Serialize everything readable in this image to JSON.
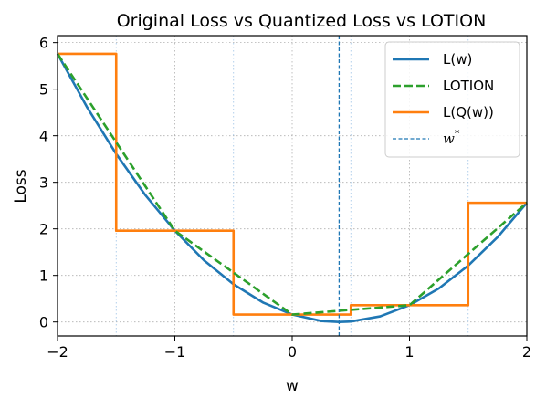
{
  "chart_data": {
    "type": "line",
    "title": "Original Loss vs Quantized Loss vs LOTION",
    "xlabel": "w",
    "ylabel": "Loss",
    "xlim": [
      -2,
      2
    ],
    "ylim": [
      -0.3,
      6.15
    ],
    "xticks": [
      -2,
      -1,
      0,
      1,
      2
    ],
    "xtick_labels": [
      "−2",
      "−1",
      "0",
      "1",
      "2"
    ],
    "yticks": [
      0,
      1,
      2,
      3,
      4,
      5,
      6
    ],
    "ytick_labels": [
      "0",
      "1",
      "2",
      "3",
      "4",
      "5",
      "6"
    ],
    "grid": true,
    "legend_position": "upper right",
    "quantization_boundaries": [
      -1.5,
      -0.5,
      0.5,
      1.5
    ],
    "series": [
      {
        "name": "L(w)",
        "color": "#1f77b4",
        "style": "solid",
        "x": [
          -2.0,
          -1.75,
          -1.5,
          -1.25,
          -1.0,
          -0.75,
          -0.5,
          -0.25,
          0.0,
          0.25,
          0.4,
          0.5,
          0.75,
          1.0,
          1.25,
          1.5,
          1.75,
          2.0
        ],
        "y": [
          5.76,
          4.62,
          3.61,
          2.72,
          1.96,
          1.32,
          0.81,
          0.42,
          0.16,
          0.02,
          0.0,
          0.01,
          0.12,
          0.36,
          0.72,
          1.21,
          1.82,
          2.56
        ]
      },
      {
        "name": "LOTION",
        "color": "#2ca02c",
        "style": "dashed",
        "x": [
          -2.0,
          -1.5,
          -1.0,
          -0.5,
          0.0,
          0.5,
          1.0,
          1.5,
          2.0
        ],
        "y": [
          5.76,
          3.86,
          1.96,
          1.06,
          0.16,
          0.26,
          0.36,
          1.46,
          2.56
        ]
      },
      {
        "name": "L(Q(w))",
        "color": "#ff7f0e",
        "style": "step",
        "x": [
          -2.0,
          -1.5,
          -1.5,
          -0.5,
          -0.5,
          0.5,
          0.5,
          1.5,
          1.5,
          2.0
        ],
        "y": [
          5.76,
          5.76,
          1.96,
          1.96,
          0.16,
          0.16,
          0.36,
          0.36,
          2.56,
          2.56
        ]
      }
    ],
    "vline": {
      "name": "w*",
      "x": 0.4,
      "color": "#1f77b4",
      "style": "dashed"
    },
    "legend": [
      {
        "label": "L(w)",
        "color": "#1f77b4",
        "style": "solid"
      },
      {
        "label": "LOTION",
        "color": "#2ca02c",
        "style": "dashed"
      },
      {
        "label": "L(Q(w))",
        "color": "#ff7f0e",
        "style": "solid"
      },
      {
        "label_base": "w",
        "label_sup": "*",
        "color": "#1f77b4",
        "style": "thin-dashed"
      }
    ]
  }
}
